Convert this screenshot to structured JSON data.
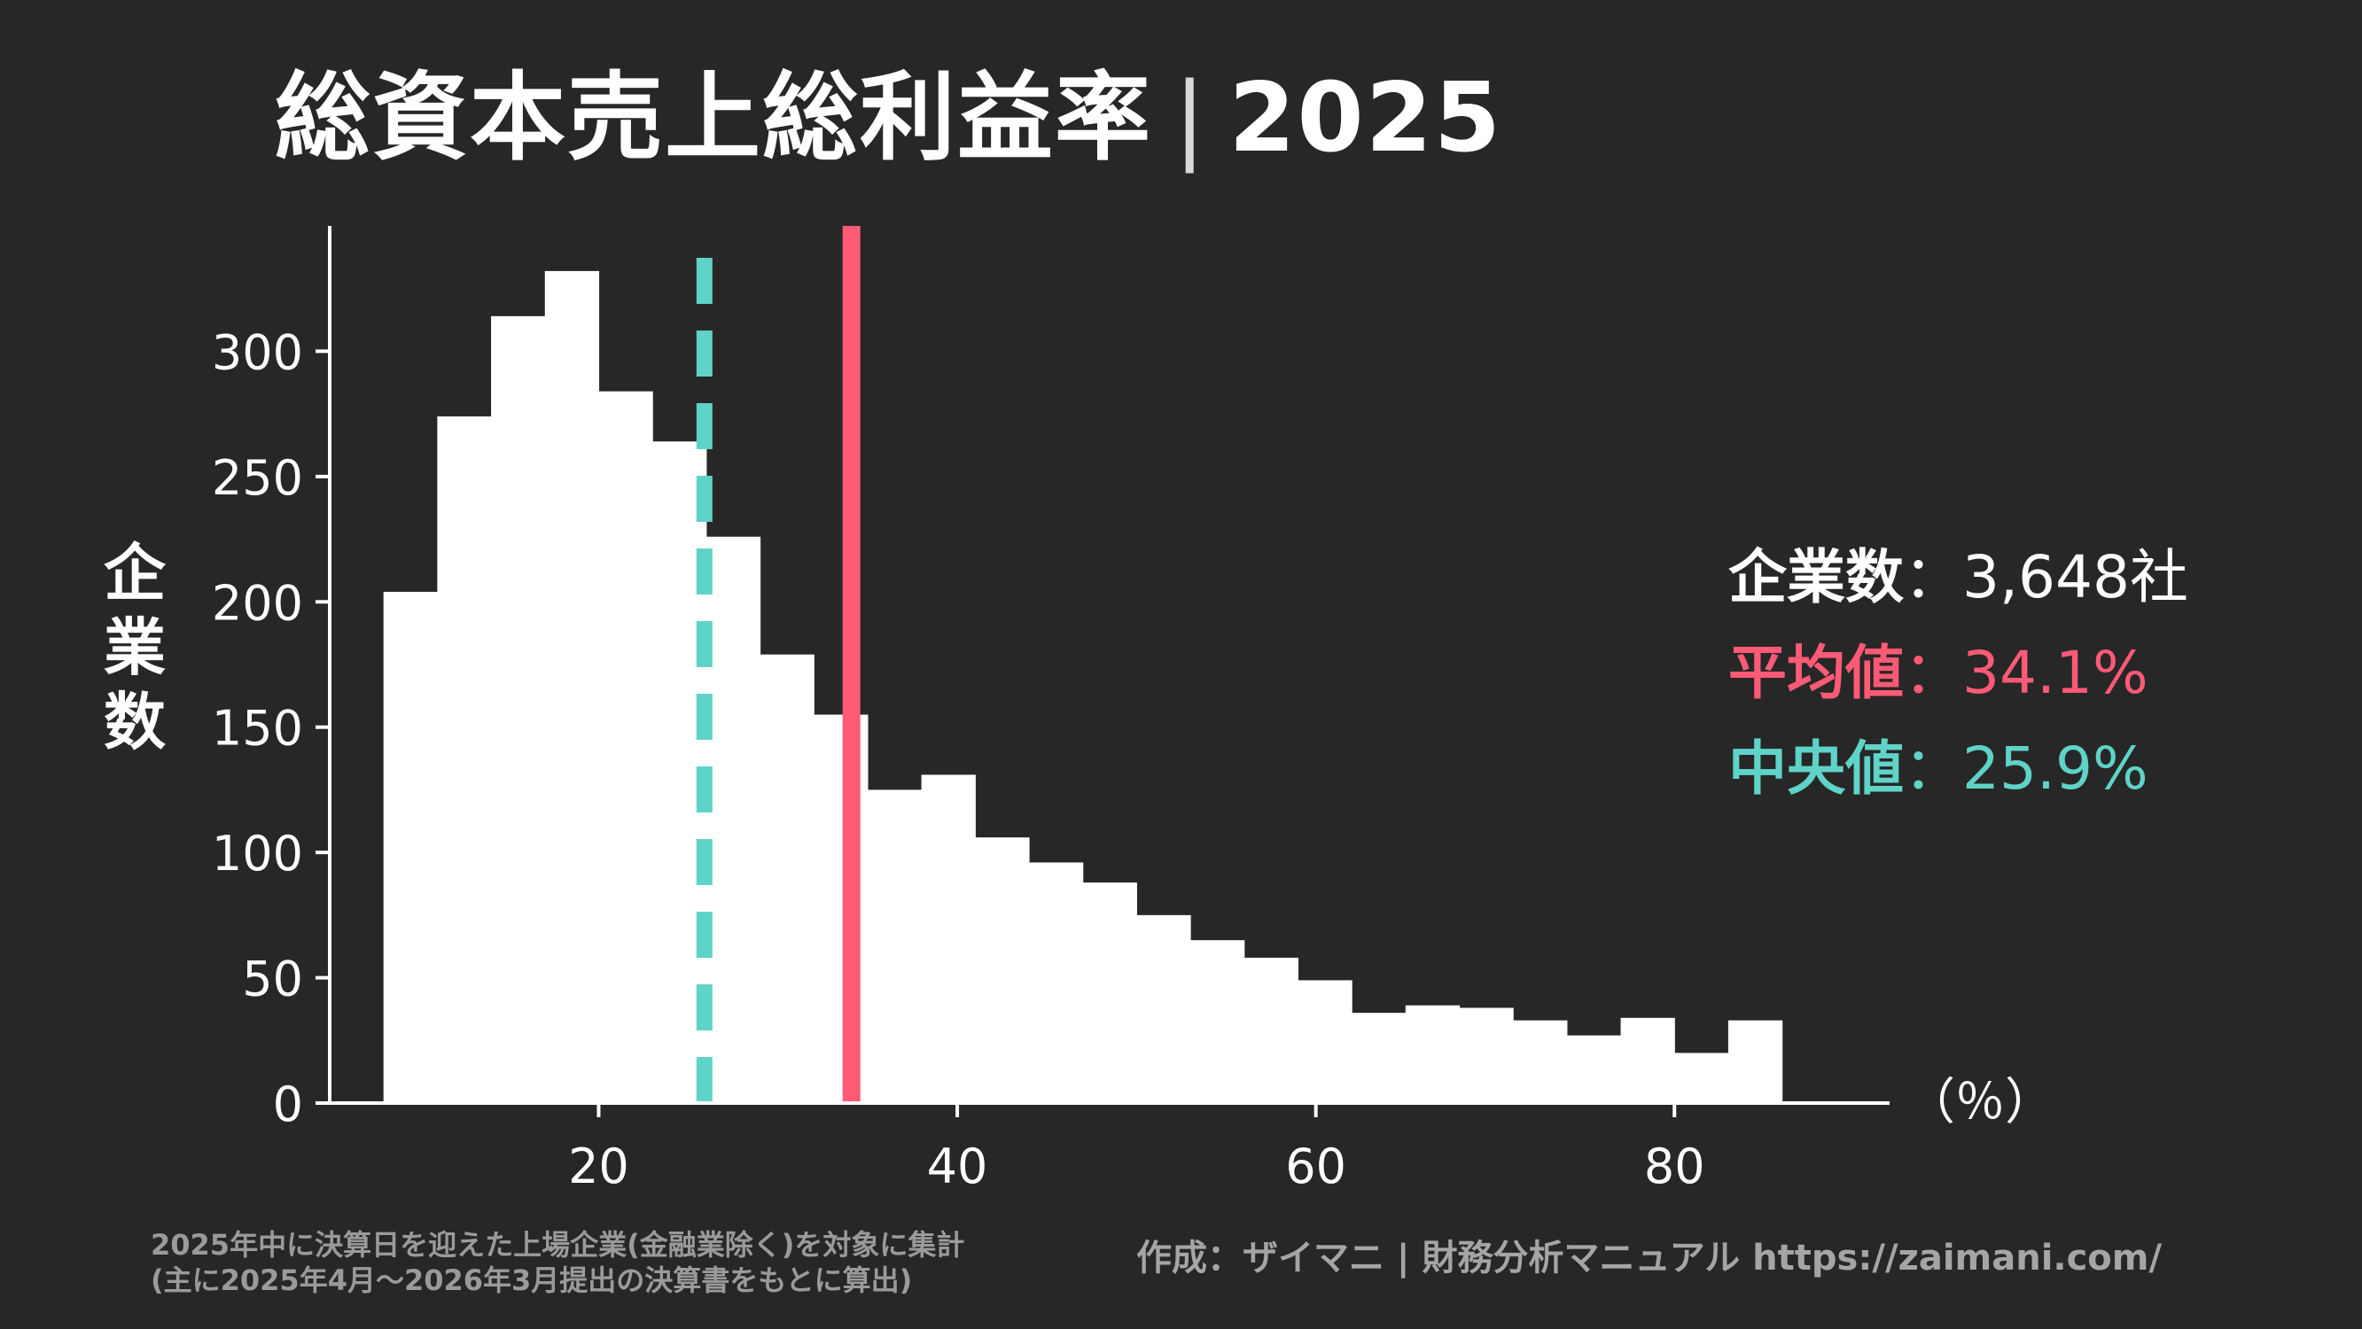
{
  "title": {
    "main": "総資本売上総利益率",
    "separator": "|",
    "year": "2025"
  },
  "chart_data": {
    "type": "bar",
    "bin_edges": [
      8,
      11,
      14,
      17,
      20,
      23,
      26,
      29,
      32,
      35,
      38,
      41,
      44,
      47,
      50,
      53,
      56,
      59,
      62,
      65,
      68,
      71,
      74,
      77,
      80,
      83,
      86
    ],
    "values": [
      204,
      274,
      314,
      332,
      284,
      264,
      226,
      179,
      155,
      125,
      131,
      106,
      96,
      88,
      75,
      65,
      58,
      49,
      36,
      39,
      38,
      33,
      27,
      34,
      20,
      33
    ],
    "xlabel": "（％）",
    "ylabel": "企業数",
    "xlim": [
      5,
      92
    ],
    "ylim": [
      0,
      350
    ],
    "xticks": [
      20,
      40,
      60,
      80
    ],
    "yticks": [
      0,
      50,
      100,
      150,
      200,
      250,
      300
    ],
    "mean": 34.1,
    "median": 25.9,
    "grid": false,
    "colors": {
      "bars": "#ffffff",
      "mean": "#ff5a76",
      "median": "#5fd3c7",
      "axis": "#ffffff",
      "background": "#272727"
    }
  },
  "stats": {
    "count_label": "企業数",
    "count_value": "：3,648社",
    "mean_label": "平均値",
    "mean_value": "：34.1%",
    "median_label": "中央値",
    "median_value": "：25.9%"
  },
  "footer": {
    "note_line1": "2025年中に決算日を迎えた上場企業(金融業除く)を対象に集計",
    "note_line2": "(主に2025年4月〜2026年3月提出の決算書をもとに算出)",
    "credit": "作成：ザイマニ | 財務分析マニュアル https://zaimani.com/"
  }
}
